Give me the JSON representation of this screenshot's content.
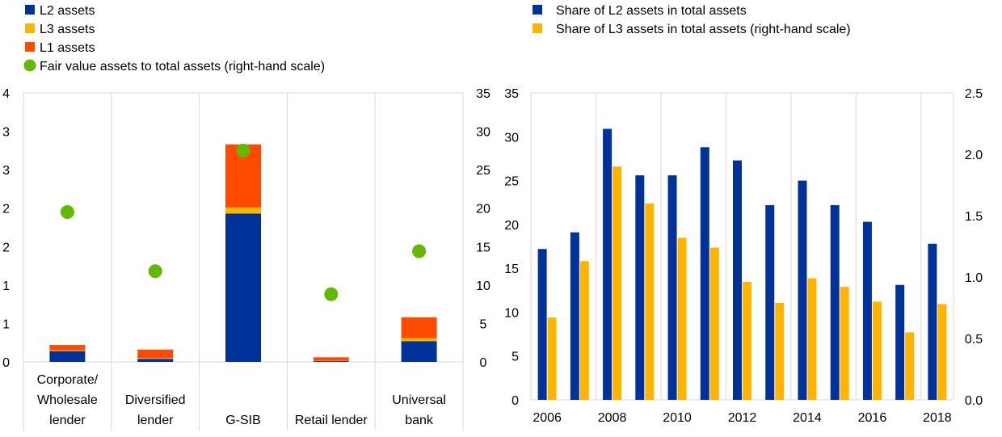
{
  "colors": {
    "l2": "#003299",
    "l3": "#ffb400",
    "l1": "#ff4b00",
    "fair_value": "#65b800",
    "grid": "#d9d9d9"
  },
  "chart_data": [
    {
      "type": "bar",
      "stacked": true,
      "title": "",
      "categories": [
        "Corporate/ Wholesale lender",
        "Diversified lender",
        "G-SIB",
        "Retail lender",
        "Universal bank"
      ],
      "category_label_lines": [
        [
          "Corporate/",
          "Wholesale",
          "lender"
        ],
        [
          "Diversified",
          "lender"
        ],
        [
          "G-SIB"
        ],
        [
          "Retail lender"
        ],
        [
          "Universal",
          "bank"
        ]
      ],
      "series": [
        {
          "name": "L2 assets",
          "values": [
            0.14,
            0.04,
            1.93,
            0.01,
            0.27
          ],
          "axis": "left",
          "color_key": "l2"
        },
        {
          "name": "L3 assets",
          "values": [
            0.01,
            0.01,
            0.08,
            0.005,
            0.04
          ],
          "axis": "left",
          "color_key": "l3"
        },
        {
          "name": "L1 assets",
          "values": [
            0.07,
            0.11,
            0.82,
            0.045,
            0.27
          ],
          "axis": "left",
          "color_key": "l1"
        },
        {
          "name": "Fair value assets to total assets (right-hand scale)",
          "type": "scatter",
          "values": [
            19.5,
            11.8,
            27.5,
            8.8,
            14.4
          ],
          "axis": "right",
          "color_key": "fair_value"
        }
      ],
      "y_left": {
        "ylim": [
          0,
          3.5
        ],
        "ticks": [
          0,
          0.5,
          1,
          1.5,
          2,
          2.5,
          3,
          3.5
        ],
        "tick_labels": [
          "0",
          "1",
          "1",
          "2",
          "2",
          "3",
          "3",
          "4"
        ]
      },
      "y_right": {
        "ylim": [
          0,
          35
        ],
        "ticks": [
          0,
          5,
          10,
          15,
          20,
          25,
          30,
          35
        ],
        "tick_labels": [
          "0",
          "5",
          "10",
          "15",
          "20",
          "25",
          "30",
          "35"
        ]
      },
      "grid": true,
      "legend_position": "top-left"
    },
    {
      "type": "bar",
      "title": "",
      "x": [
        2006,
        2007,
        2008,
        2009,
        2010,
        2011,
        2012,
        2013,
        2014,
        2015,
        2016,
        2017,
        2018
      ],
      "x_tick_labels": [
        "2006",
        "2008",
        "2010",
        "2012",
        "2014",
        "2016",
        "2018"
      ],
      "series": [
        {
          "name": "Share of L2 assets in total assets",
          "values": [
            17.2,
            19.1,
            30.9,
            25.6,
            25.6,
            28.8,
            27.3,
            22.2,
            25.0,
            22.2,
            20.3,
            13.1,
            17.8
          ],
          "axis": "left",
          "color_key": "l2"
        },
        {
          "name": "Share of L3 assets in total assets (right-hand scale)",
          "values": [
            0.67,
            1.13,
            1.9,
            1.6,
            1.32,
            1.24,
            0.96,
            0.79,
            0.99,
            0.92,
            0.8,
            0.55,
            0.78
          ],
          "axis": "right",
          "color_key": "l3"
        }
      ],
      "y_left": {
        "ylim": [
          0,
          35
        ],
        "ticks": [
          0,
          5,
          10,
          15,
          20,
          25,
          30,
          35
        ],
        "tick_labels": [
          "0",
          "5",
          "10",
          "15",
          "20",
          "25",
          "30",
          "35"
        ]
      },
      "y_right": {
        "ylim": [
          0,
          2.5
        ],
        "ticks": [
          0,
          0.5,
          1,
          1.5,
          2,
          2.5
        ],
        "tick_labels": [
          "0.0",
          "0.5",
          "1.0",
          "1.5",
          "2.0",
          "2.5"
        ]
      },
      "grid": true,
      "legend_position": "top"
    }
  ]
}
